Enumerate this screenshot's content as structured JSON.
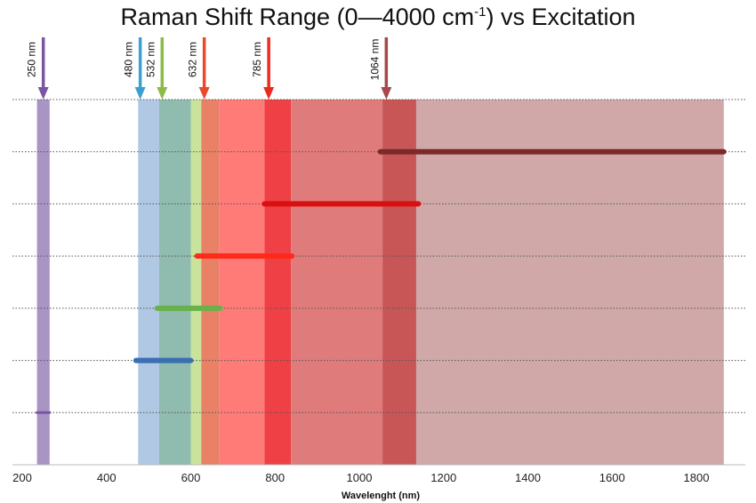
{
  "chart_data": {
    "type": "bar",
    "title_main": "Raman Shift Range (0—4000 cm",
    "title_sup": "-1",
    "title_end": ") vs Excitation",
    "xlabel": "Wavelenght (nm)",
    "ylabel": "",
    "xlim": [
      200,
      1870
    ],
    "x_ticks": [
      200,
      400,
      600,
      800,
      1000,
      1200,
      1400,
      1600,
      1800
    ],
    "grid": "horizontal dotted",
    "lasers": [
      {
        "label": "250 nm",
        "excitation_nm": 250,
        "range_nm": [
          250,
          280
        ],
        "color": "#7b55a3",
        "band_color": "#a995c4"
      },
      {
        "label": "480 nm",
        "excitation_nm": 480,
        "range_nm": [
          480,
          585
        ],
        "color": "#3b9fd0",
        "band_color": "#b1c8e5"
      },
      {
        "label": "532 nm",
        "excitation_nm": 532,
        "range_nm": [
          532,
          660
        ],
        "color": "#8dbb4a",
        "band_color": "#8fbcaf"
      },
      {
        "label": "632 nm",
        "excitation_nm": 632,
        "range_nm": [
          632,
          833
        ],
        "color": "#e84a2e",
        "band_color": "#ff7b78"
      },
      {
        "label": "785 nm",
        "excitation_nm": 785,
        "range_nm": [
          785,
          1135
        ],
        "color": "#ee2a20",
        "band_color": "#e07b7b"
      },
      {
        "label": "1064 nm",
        "excitation_nm": 1064,
        "range_nm": [
          1064,
          1865
        ],
        "color": "#a84848",
        "band_color": "#d0a8a8"
      }
    ],
    "bands_composite": [
      {
        "range_nm": [
          235,
          265
        ],
        "color": "#a995c4"
      },
      {
        "range_nm": [
          475,
          525
        ],
        "color": "#b1c8e5"
      },
      {
        "range_nm": [
          525,
          600
        ],
        "color": "#8fbcaf"
      },
      {
        "range_nm": [
          600,
          625
        ],
        "color": "#c9e39c"
      },
      {
        "range_nm": [
          625,
          668
        ],
        "color": "#e98166"
      },
      {
        "range_nm": [
          668,
          775
        ],
        "color": "#ff7b78"
      },
      {
        "range_nm": [
          775,
          838
        ],
        "color": "#ee4045"
      },
      {
        "range_nm": [
          838,
          1055
        ],
        "color": "#e07b7b"
      },
      {
        "range_nm": [
          1055,
          1135
        ],
        "color": "#c95656"
      },
      {
        "range_nm": [
          1135,
          1865
        ],
        "color": "#d0a8a8"
      }
    ],
    "range_lines": [
      {
        "name": "250",
        "range_nm": [
          235,
          265
        ],
        "level": 1,
        "color": "#7b55a3"
      },
      {
        "name": "480",
        "range_nm": [
          470,
          600
        ],
        "level": 2,
        "color": "#3a6fb0"
      },
      {
        "name": "532",
        "range_nm": [
          520,
          670
        ],
        "level": 3,
        "color": "#6ab04c"
      },
      {
        "name": "632",
        "range_nm": [
          615,
          840
        ],
        "level": 4,
        "color": "#ff2a1a"
      },
      {
        "name": "785",
        "range_nm": [
          775,
          1140
        ],
        "level": 5,
        "color": "#d81010"
      },
      {
        "name": "1064",
        "range_nm": [
          1050,
          1865
        ],
        "level": 6,
        "color": "#7b2a2a"
      }
    ]
  }
}
